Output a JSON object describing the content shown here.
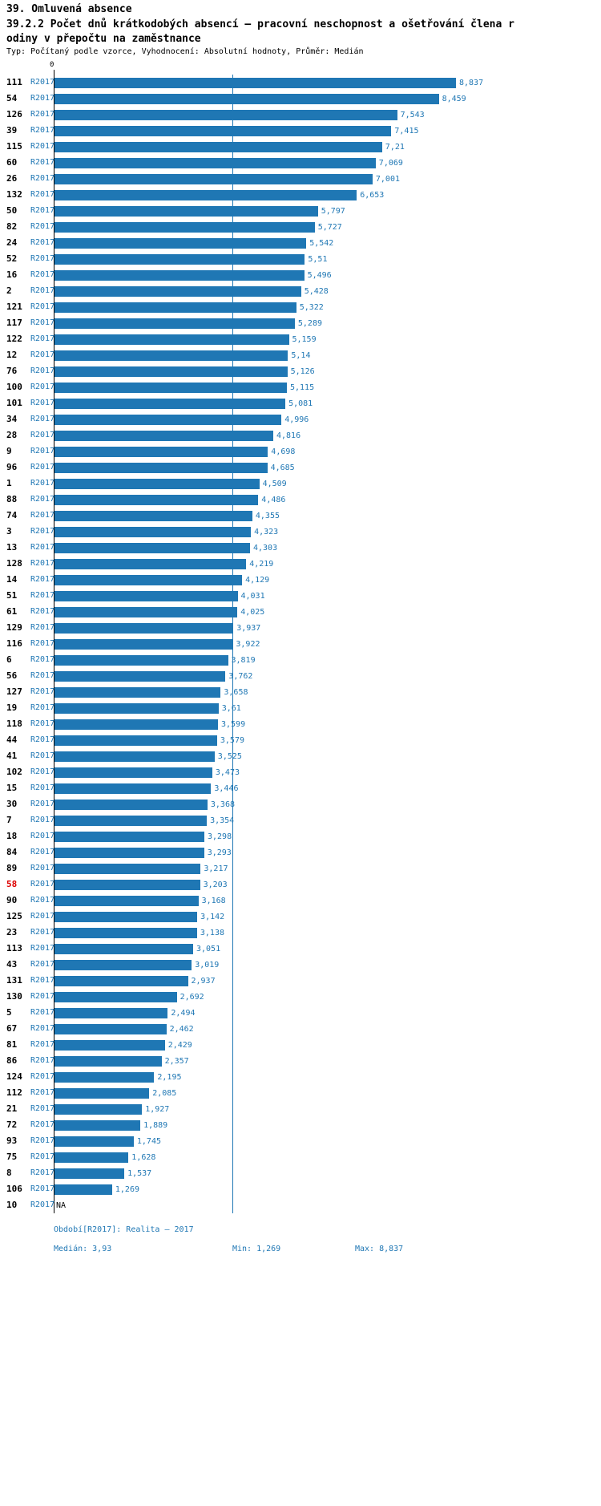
{
  "header": {
    "section": "39. Omluvená absence",
    "title": "39.2.2 Počet dnů krátkodobých absencí – pracovní neschopnost a ošetřování člena r\nodiny v přepočtu na zaměstnance",
    "meta": "Typ: Počítaný podle vzorce, Vyhodnocení: Absolutní hodnoty, Průměr: Medián"
  },
  "chart_data": {
    "type": "bar",
    "orientation": "horizontal",
    "title": "39.2.2 Počet dnů krátkodobých absencí – pracovní neschopnost a ošetřování člena rodiny v přepočtu na zaměstnance",
    "period_label": "R2017",
    "axis_zero_label": "0",
    "xlim": [
      0,
      8.837
    ],
    "median": 3.93,
    "max_value": 8.837,
    "min_value": 1.269,
    "na_label": "NA",
    "bar_color": "#1f77b4",
    "highlight_color": "#dd0000",
    "grid": false,
    "rows": [
      {
        "id": "111",
        "value": 8.837,
        "display": "8,837"
      },
      {
        "id": "54",
        "value": 8.459,
        "display": "8,459"
      },
      {
        "id": "126",
        "value": 7.543,
        "display": "7,543"
      },
      {
        "id": "39",
        "value": 7.415,
        "display": "7,415"
      },
      {
        "id": "115",
        "value": 7.21,
        "display": "7,21"
      },
      {
        "id": "60",
        "value": 7.069,
        "display": "7,069"
      },
      {
        "id": "26",
        "value": 7.001,
        "display": "7,001"
      },
      {
        "id": "132",
        "value": 6.653,
        "display": "6,653"
      },
      {
        "id": "50",
        "value": 5.797,
        "display": "5,797"
      },
      {
        "id": "82",
        "value": 5.727,
        "display": "5,727"
      },
      {
        "id": "24",
        "value": 5.542,
        "display": "5,542"
      },
      {
        "id": "52",
        "value": 5.51,
        "display": "5,51"
      },
      {
        "id": "16",
        "value": 5.496,
        "display": "5,496"
      },
      {
        "id": "2",
        "value": 5.428,
        "display": "5,428"
      },
      {
        "id": "121",
        "value": 5.322,
        "display": "5,322"
      },
      {
        "id": "117",
        "value": 5.289,
        "display": "5,289"
      },
      {
        "id": "122",
        "value": 5.159,
        "display": "5,159"
      },
      {
        "id": "12",
        "value": 5.14,
        "display": "5,14"
      },
      {
        "id": "76",
        "value": 5.126,
        "display": "5,126"
      },
      {
        "id": "100",
        "value": 5.115,
        "display": "5,115"
      },
      {
        "id": "101",
        "value": 5.081,
        "display": "5,081"
      },
      {
        "id": "34",
        "value": 4.996,
        "display": "4,996"
      },
      {
        "id": "28",
        "value": 4.816,
        "display": "4,816"
      },
      {
        "id": "9",
        "value": 4.698,
        "display": "4,698"
      },
      {
        "id": "96",
        "value": 4.685,
        "display": "4,685"
      },
      {
        "id": "1",
        "value": 4.509,
        "display": "4,509"
      },
      {
        "id": "88",
        "value": 4.486,
        "display": "4,486"
      },
      {
        "id": "74",
        "value": 4.355,
        "display": "4,355"
      },
      {
        "id": "3",
        "value": 4.323,
        "display": "4,323"
      },
      {
        "id": "13",
        "value": 4.303,
        "display": "4,303"
      },
      {
        "id": "128",
        "value": 4.219,
        "display": "4,219"
      },
      {
        "id": "14",
        "value": 4.129,
        "display": "4,129"
      },
      {
        "id": "51",
        "value": 4.031,
        "display": "4,031"
      },
      {
        "id": "61",
        "value": 4.025,
        "display": "4,025"
      },
      {
        "id": "129",
        "value": 3.937,
        "display": "3,937"
      },
      {
        "id": "116",
        "value": 3.922,
        "display": "3,922"
      },
      {
        "id": "6",
        "value": 3.819,
        "display": "3,819"
      },
      {
        "id": "56",
        "value": 3.762,
        "display": "3,762"
      },
      {
        "id": "127",
        "value": 3.658,
        "display": "3,658"
      },
      {
        "id": "19",
        "value": 3.61,
        "display": "3,61"
      },
      {
        "id": "118",
        "value": 3.599,
        "display": "3,599"
      },
      {
        "id": "44",
        "value": 3.579,
        "display": "3,579"
      },
      {
        "id": "41",
        "value": 3.525,
        "display": "3,525"
      },
      {
        "id": "102",
        "value": 3.473,
        "display": "3,473"
      },
      {
        "id": "15",
        "value": 3.446,
        "display": "3,446"
      },
      {
        "id": "30",
        "value": 3.368,
        "display": "3,368"
      },
      {
        "id": "7",
        "value": 3.354,
        "display": "3,354"
      },
      {
        "id": "18",
        "value": 3.298,
        "display": "3,298"
      },
      {
        "id": "84",
        "value": 3.293,
        "display": "3,293"
      },
      {
        "id": "89",
        "value": 3.217,
        "display": "3,217"
      },
      {
        "id": "58",
        "value": 3.203,
        "display": "3,203",
        "highlight": true
      },
      {
        "id": "90",
        "value": 3.168,
        "display": "3,168"
      },
      {
        "id": "125",
        "value": 3.142,
        "display": "3,142"
      },
      {
        "id": "23",
        "value": 3.138,
        "display": "3,138"
      },
      {
        "id": "113",
        "value": 3.051,
        "display": "3,051"
      },
      {
        "id": "43",
        "value": 3.019,
        "display": "3,019"
      },
      {
        "id": "131",
        "value": 2.937,
        "display": "2,937"
      },
      {
        "id": "130",
        "value": 2.692,
        "display": "2,692"
      },
      {
        "id": "5",
        "value": 2.494,
        "display": "2,494"
      },
      {
        "id": "67",
        "value": 2.462,
        "display": "2,462"
      },
      {
        "id": "81",
        "value": 2.429,
        "display": "2,429"
      },
      {
        "id": "86",
        "value": 2.357,
        "display": "2,357"
      },
      {
        "id": "124",
        "value": 2.195,
        "display": "2,195"
      },
      {
        "id": "112",
        "value": 2.085,
        "display": "2,085"
      },
      {
        "id": "21",
        "value": 1.927,
        "display": "1,927"
      },
      {
        "id": "72",
        "value": 1.889,
        "display": "1,889"
      },
      {
        "id": "93",
        "value": 1.745,
        "display": "1,745"
      },
      {
        "id": "75",
        "value": 1.628,
        "display": "1,628"
      },
      {
        "id": "8",
        "value": 1.537,
        "display": "1,537"
      },
      {
        "id": "106",
        "value": 1.269,
        "display": "1,269"
      },
      {
        "id": "10",
        "value": null,
        "display": "NA"
      }
    ]
  },
  "footer": {
    "period": "Období[R2017]: Realita – 2017",
    "median": "Medián: 3,93",
    "min": "Min: 1,269",
    "max": "Max: 8,837"
  }
}
